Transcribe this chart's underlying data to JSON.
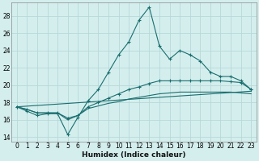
{
  "xlabel": "Humidex (Indice chaleur)",
  "background_color": "#d4eeee",
  "grid_color": "#b8d8d8",
  "line_color": "#1a6e6e",
  "xlim": [
    -0.5,
    23.5
  ],
  "ylim": [
    13.5,
    29.5
  ],
  "xticks": [
    0,
    1,
    2,
    3,
    4,
    5,
    6,
    7,
    8,
    9,
    10,
    11,
    12,
    13,
    14,
    15,
    16,
    17,
    18,
    19,
    20,
    21,
    22,
    23
  ],
  "yticks": [
    14,
    16,
    18,
    20,
    22,
    24,
    26,
    28
  ],
  "series1_x": [
    0,
    1,
    2,
    3,
    4,
    5,
    6,
    7,
    8,
    9,
    10,
    11,
    12,
    13,
    14,
    15,
    16,
    17,
    18,
    19,
    20,
    21,
    22,
    23
  ],
  "series1_y": [
    17.5,
    17.0,
    16.5,
    16.7,
    16.7,
    14.3,
    16.3,
    18.2,
    19.5,
    21.5,
    23.5,
    25.0,
    27.5,
    29.0,
    24.5,
    23.0,
    24.0,
    23.5,
    22.8,
    21.5,
    21.0,
    21.0,
    20.5,
    19.5
  ],
  "series2_x": [
    0,
    1,
    2,
    3,
    4,
    5,
    6,
    7,
    8,
    9,
    10,
    11,
    12,
    13,
    14,
    15,
    16,
    17,
    18,
    19,
    20,
    21,
    22,
    23
  ],
  "series2_y": [
    17.5,
    17.2,
    16.8,
    16.8,
    16.8,
    16.2,
    16.5,
    17.5,
    18.0,
    18.5,
    19.0,
    19.5,
    19.8,
    20.2,
    20.5,
    20.5,
    20.5,
    20.5,
    20.5,
    20.5,
    20.5,
    20.4,
    20.3,
    19.5
  ],
  "series3_x": [
    0,
    1,
    2,
    3,
    4,
    5,
    6,
    7,
    8,
    9,
    10,
    11,
    12,
    13,
    14,
    15,
    16,
    17,
    18,
    19,
    20,
    21,
    22,
    23
  ],
  "series3_y": [
    17.5,
    17.2,
    16.8,
    16.8,
    16.8,
    16.0,
    16.5,
    17.3,
    17.6,
    17.9,
    18.1,
    18.4,
    18.6,
    18.8,
    19.0,
    19.1,
    19.2,
    19.2,
    19.2,
    19.2,
    19.2,
    19.2,
    19.1,
    19.0
  ],
  "series4_x": [
    0,
    23
  ],
  "series4_y": [
    17.5,
    19.3
  ],
  "xlabel_fontsize": 6.5,
  "tick_fontsize": 5.5
}
